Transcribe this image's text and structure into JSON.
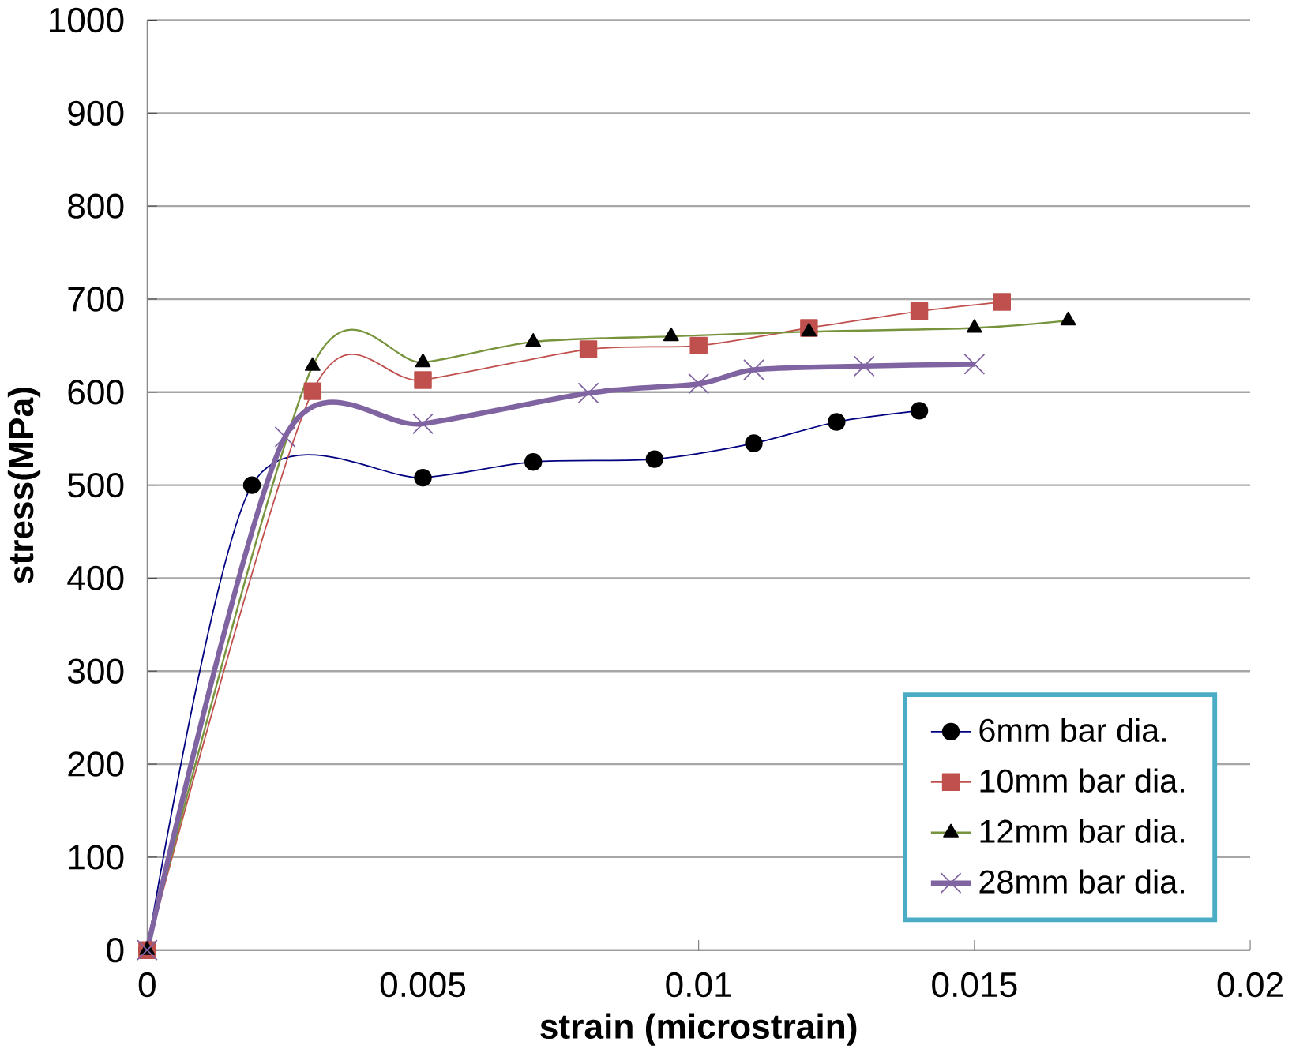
{
  "chart_data": {
    "type": "line",
    "xlabel": "strain (microstrain)",
    "ylabel": "stress(MPa)",
    "xlim": [
      0,
      0.02
    ],
    "xticks": [
      0,
      0.005,
      0.01,
      0.015,
      0.02
    ],
    "ylim": [
      0,
      1000
    ],
    "yticks": [
      0,
      100,
      200,
      300,
      400,
      500,
      600,
      700,
      800,
      900,
      1000
    ],
    "grid": "y",
    "legend": "bottom right",
    "series": [
      {
        "name": "6mm bar dia.",
        "color": "#000080",
        "marker": "circle",
        "x": [
          0,
          0.0019,
          0.005,
          0.007,
          0.0092,
          0.011,
          0.0125,
          0.014
        ],
        "values": [
          0,
          500,
          508,
          525,
          528,
          545,
          568,
          580
        ]
      },
      {
        "name": "10mm bar dia.",
        "color": "#c0504d",
        "marker": "square",
        "x": [
          0,
          0.003,
          0.005,
          0.008,
          0.01,
          0.012,
          0.014,
          0.0155
        ],
        "values": [
          0,
          601,
          613,
          646,
          650,
          669,
          687,
          697
        ]
      },
      {
        "name": "12mm bar dia.",
        "color": "#77933c",
        "marker": "triangle",
        "x": [
          0,
          0.003,
          0.005,
          0.007,
          0.0095,
          0.012,
          0.015,
          0.0167
        ],
        "values": [
          0,
          628,
          632,
          654,
          660,
          665,
          669,
          677
        ]
      },
      {
        "name": "28mm bar dia.",
        "color": "#8064a2",
        "marker": "cross",
        "x": [
          0,
          0.0025,
          0.005,
          0.008,
          0.01,
          0.011,
          0.013,
          0.015
        ],
        "values": [
          0,
          552,
          566,
          599,
          609,
          624,
          628,
          630
        ]
      }
    ]
  }
}
